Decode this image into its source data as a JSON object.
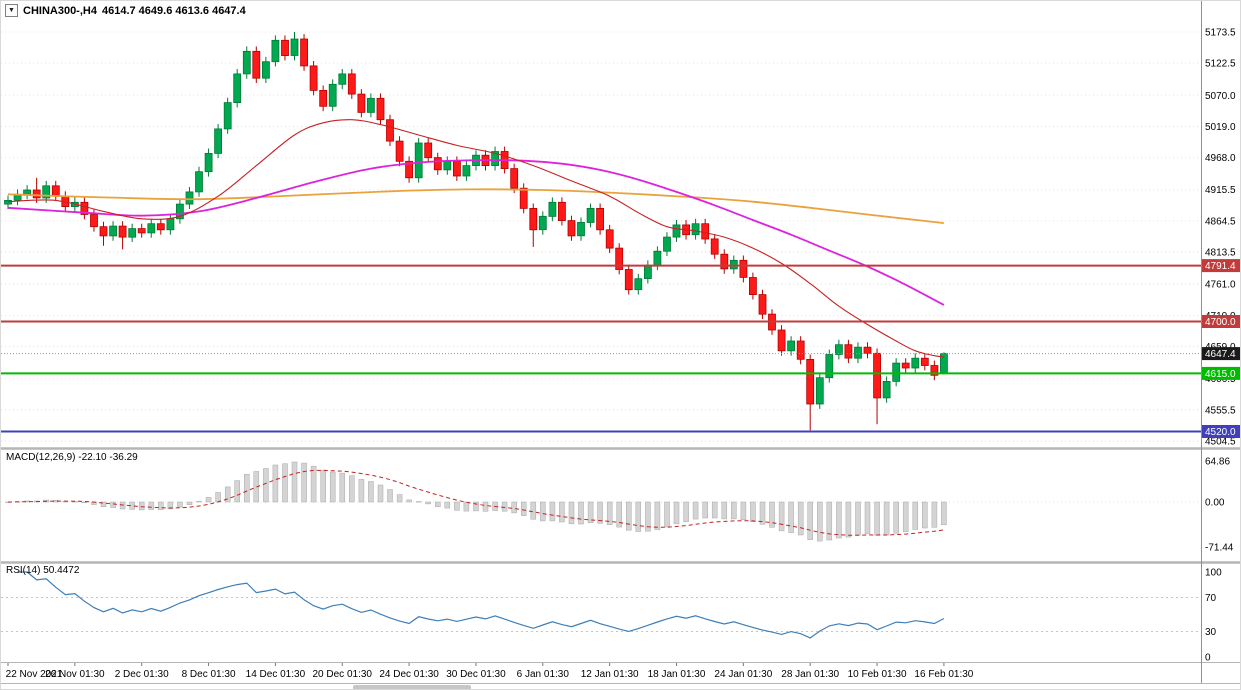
{
  "header": {
    "dropdown_icon": "▼",
    "symbol_label": "CHINA300-,H4",
    "ohlc_label": "4614.7 4649.6 4613.6 4647.4"
  },
  "indicators": {
    "macd": {
      "label": "MACD(12,26,9) -22.10 -36.29",
      "params": [
        12,
        26,
        9
      ],
      "main_value": -22.1,
      "signal_value": -36.29,
      "axis_ticks": [
        "64.86",
        "0.00",
        "-71.44"
      ]
    },
    "rsi": {
      "label": "RSI(14) 50.4472",
      "period": 14,
      "value": 50.4472,
      "axis_ticks": [
        "100",
        "70",
        "30",
        "0"
      ],
      "levels": [
        70,
        30
      ]
    }
  },
  "chart_data": {
    "type": "candlestick",
    "symbol": "CHINA300-",
    "timeframe": "H4",
    "last_ohlc": {
      "open": 4614.7,
      "high": 4649.6,
      "low": 4613.6,
      "close": 4647.4
    },
    "price_axis_ticks": [
      5173.5,
      5122.5,
      5070.0,
      5019.0,
      4968.0,
      4915.5,
      4864.5,
      4813.5,
      4761.0,
      4710.0,
      4659.0,
      4606.5,
      4555.5,
      4504.5
    ],
    "time_ticks": [
      {
        "i": 0,
        "label": "22 Nov 2021"
      },
      {
        "i": 7,
        "label": "26 Nov 01:30"
      },
      {
        "i": 14,
        "label": "2 Dec 01:30"
      },
      {
        "i": 21,
        "label": "8 Dec 01:30"
      },
      {
        "i": 28,
        "label": "14 Dec 01:30"
      },
      {
        "i": 35,
        "label": "20 Dec 01:30"
      },
      {
        "i": 42,
        "label": "24 Dec 01:30"
      },
      {
        "i": 49,
        "label": "30 Dec 01:30"
      },
      {
        "i": 56,
        "label": "6 Jan 01:30"
      },
      {
        "i": 63,
        "label": "12 Jan 01:30"
      },
      {
        "i": 70,
        "label": "18 Jan 01:30"
      },
      {
        "i": 77,
        "label": "24 Jan 01:30"
      },
      {
        "i": 84,
        "label": "28 Jan 01:30"
      },
      {
        "i": 91,
        "label": "10 Feb 01:30"
      },
      {
        "i": 98,
        "label": "16 Feb 01:30"
      }
    ],
    "candles": [
      [
        4892,
        4906,
        4884,
        4898
      ],
      [
        4898,
        4916,
        4890,
        4908
      ],
      [
        4908,
        4923,
        4900,
        4915
      ],
      [
        4915,
        4935,
        4894,
        4902
      ],
      [
        4902,
        4930,
        4894,
        4922
      ],
      [
        4922,
        4930,
        4897,
        4905
      ],
      [
        4905,
        4913,
        4880,
        4888
      ],
      [
        4888,
        4903,
        4880,
        4895
      ],
      [
        4895,
        4903,
        4867,
        4875
      ],
      [
        4875,
        4883,
        4847,
        4855
      ],
      [
        4855,
        4863,
        4824,
        4840
      ],
      [
        4840,
        4864,
        4832,
        4856
      ],
      [
        4856,
        4864,
        4818,
        4838
      ],
      [
        4838,
        4860,
        4830,
        4852
      ],
      [
        4852,
        4860,
        4837,
        4845
      ],
      [
        4845,
        4868,
        4837,
        4860
      ],
      [
        4860,
        4868,
        4842,
        4850
      ],
      [
        4850,
        4876,
        4842,
        4868
      ],
      [
        4868,
        4900,
        4860,
        4892
      ],
      [
        4892,
        4920,
        4884,
        4912
      ],
      [
        4912,
        4953,
        4904,
        4945
      ],
      [
        4945,
        4983,
        4937,
        4975
      ],
      [
        4975,
        5023,
        4967,
        5015
      ],
      [
        5015,
        5066,
        5007,
        5058
      ],
      [
        5058,
        5113,
        5050,
        5105
      ],
      [
        5105,
        5150,
        5097,
        5142
      ],
      [
        5142,
        5150,
        5090,
        5098
      ],
      [
        5098,
        5133,
        5090,
        5125
      ],
      [
        5125,
        5168,
        5117,
        5160
      ],
      [
        5160,
        5168,
        5127,
        5135
      ],
      [
        5135,
        5173.5,
        5127,
        5162
      ],
      [
        5162,
        5170,
        5110,
        5118
      ],
      [
        5118,
        5126,
        5070,
        5078
      ],
      [
        5078,
        5086,
        5044,
        5052
      ],
      [
        5052,
        5096,
        5044,
        5088
      ],
      [
        5088,
        5113,
        5080,
        5105
      ],
      [
        5105,
        5113,
        5064,
        5072
      ],
      [
        5072,
        5080,
        5034,
        5042
      ],
      [
        5042,
        5073,
        5034,
        5065
      ],
      [
        5065,
        5073,
        5022,
        5030
      ],
      [
        5030,
        5038,
        4987,
        4995
      ],
      [
        4995,
        5003,
        4954,
        4962
      ],
      [
        4962,
        4970,
        4927,
        4935
      ],
      [
        4935,
        5000,
        4927,
        4992
      ],
      [
        4992,
        5000,
        4960,
        4968
      ],
      [
        4968,
        4976,
        4940,
        4948
      ],
      [
        4948,
        4970,
        4940,
        4962
      ],
      [
        4962,
        4970,
        4930,
        4938
      ],
      [
        4938,
        4963,
        4930,
        4955
      ],
      [
        4955,
        4980,
        4947,
        4972
      ],
      [
        4972,
        4980,
        4947,
        4955
      ],
      [
        4955,
        4986,
        4947,
        4978
      ],
      [
        4978,
        4986,
        4942,
        4950
      ],
      [
        4950,
        4958,
        4910,
        4918
      ],
      [
        4918,
        4926,
        4877,
        4885
      ],
      [
        4885,
        4893,
        4822,
        4850
      ],
      [
        4850,
        4880,
        4842,
        4872
      ],
      [
        4872,
        4903,
        4864,
        4895
      ],
      [
        4895,
        4903,
        4857,
        4865
      ],
      [
        4865,
        4873,
        4832,
        4840
      ],
      [
        4840,
        4870,
        4832,
        4862
      ],
      [
        4862,
        4893,
        4854,
        4885
      ],
      [
        4885,
        4893,
        4842,
        4850
      ],
      [
        4850,
        4858,
        4812,
        4820
      ],
      [
        4820,
        4828,
        4777,
        4785
      ],
      [
        4785,
        4793,
        4744,
        4752
      ],
      [
        4752,
        4778,
        4744,
        4770
      ],
      [
        4770,
        4800,
        4762,
        4792
      ],
      [
        4792,
        4823,
        4784,
        4815
      ],
      [
        4815,
        4846,
        4807,
        4838
      ],
      [
        4838,
        4866,
        4830,
        4858
      ],
      [
        4858,
        4866,
        4834,
        4842
      ],
      [
        4842,
        4868,
        4834,
        4860
      ],
      [
        4860,
        4868,
        4827,
        4835
      ],
      [
        4835,
        4843,
        4802,
        4810
      ],
      [
        4810,
        4818,
        4778,
        4786
      ],
      [
        4786,
        4808,
        4778,
        4800
      ],
      [
        4800,
        4808,
        4764,
        4772
      ],
      [
        4772,
        4780,
        4736,
        4744
      ],
      [
        4744,
        4752,
        4704,
        4712
      ],
      [
        4712,
        4720,
        4678,
        4686
      ],
      [
        4686,
        4694,
        4644,
        4652
      ],
      [
        4652,
        4676,
        4644,
        4668
      ],
      [
        4668,
        4676,
        4630,
        4638
      ],
      [
        4638,
        4646,
        4522,
        4565
      ],
      [
        4565,
        4616,
        4557,
        4608
      ],
      [
        4608,
        4654,
        4600,
        4646
      ],
      [
        4646,
        4670,
        4638,
        4662
      ],
      [
        4662,
        4670,
        4632,
        4640
      ],
      [
        4640,
        4666,
        4632,
        4658
      ],
      [
        4658,
        4666,
        4640,
        4648
      ],
      [
        4648,
        4656,
        4532,
        4575
      ],
      [
        4575,
        4610,
        4567,
        4602
      ],
      [
        4602,
        4640,
        4594,
        4632
      ],
      [
        4632,
        4640,
        4616,
        4624
      ],
      [
        4624,
        4648,
        4616,
        4640
      ],
      [
        4640,
        4648,
        4620,
        4628
      ],
      [
        4628,
        4636,
        4604,
        4612
      ],
      [
        4614.7,
        4649.6,
        4613.6,
        4647.4
      ]
    ],
    "moving_averages": [
      {
        "name": "ma-slow",
        "color": "#e8a33d",
        "width": 1.8,
        "points": [
          [
            0,
            4908
          ],
          [
            10,
            4903
          ],
          [
            20,
            4900
          ],
          [
            30,
            4906
          ],
          [
            40,
            4913
          ],
          [
            48,
            4916
          ],
          [
            56,
            4915
          ],
          [
            64,
            4910
          ],
          [
            72,
            4903
          ],
          [
            78,
            4896
          ],
          [
            84,
            4886
          ],
          [
            90,
            4875
          ],
          [
            94,
            4868
          ],
          [
            98,
            4861
          ]
        ]
      },
      {
        "name": "ma-mid",
        "color": "#dd22dd",
        "width": 1.8,
        "points": [
          [
            0,
            4886
          ],
          [
            8,
            4878
          ],
          [
            14,
            4873
          ],
          [
            20,
            4880
          ],
          [
            26,
            4902
          ],
          [
            32,
            4928
          ],
          [
            38,
            4950
          ],
          [
            44,
            4961
          ],
          [
            50,
            4964
          ],
          [
            54,
            4963
          ],
          [
            58,
            4958
          ],
          [
            62,
            4948
          ],
          [
            66,
            4932
          ],
          [
            70,
            4912
          ],
          [
            74,
            4890
          ],
          [
            78,
            4866
          ],
          [
            82,
            4842
          ],
          [
            86,
            4816
          ],
          [
            90,
            4790
          ],
          [
            94,
            4760
          ],
          [
            98,
            4727
          ]
        ]
      },
      {
        "name": "ma-fast",
        "color": "#c82020",
        "width": 1.1,
        "points": [
          [
            0,
            4896
          ],
          [
            5,
            4898
          ],
          [
            10,
            4880
          ],
          [
            14,
            4868
          ],
          [
            18,
            4872
          ],
          [
            22,
            4905
          ],
          [
            26,
            4955
          ],
          [
            30,
            5005
          ],
          [
            33,
            5025
          ],
          [
            36,
            5030
          ],
          [
            39,
            5022
          ],
          [
            43,
            5005
          ],
          [
            47,
            4988
          ],
          [
            51,
            4975
          ],
          [
            55,
            4955
          ],
          [
            59,
            4930
          ],
          [
            63,
            4905
          ],
          [
            66,
            4878
          ],
          [
            69,
            4855
          ],
          [
            72,
            4848
          ],
          [
            75,
            4838
          ],
          [
            78,
            4820
          ],
          [
            81,
            4795
          ],
          [
            84,
            4762
          ],
          [
            87,
            4725
          ],
          [
            90,
            4695
          ],
          [
            93,
            4668
          ],
          [
            95,
            4652
          ],
          [
            97,
            4644
          ],
          [
            98,
            4642
          ]
        ]
      }
    ],
    "h_lines": [
      {
        "value": 4791.4,
        "label": "4791.4",
        "color": "#c23b3b"
      },
      {
        "value": 4700.0,
        "label": "4700.0",
        "color": "#c23b3b"
      },
      {
        "value": 4647.4,
        "label": "4647.4",
        "color": "#1a1a1a",
        "style": "current"
      },
      {
        "value": 4615.0,
        "label": "4615.0",
        "color": "#00bb00"
      },
      {
        "value": 4520.0,
        "label": "4520.0",
        "color": "#4040bb"
      }
    ],
    "colors": {
      "bull": "#00a94f",
      "bull_stroke": "#007a38",
      "bear": "#ff1a1a",
      "bear_stroke": "#b30000",
      "macd_hist": "#d4d4d4",
      "macd_hist_stroke": "#a8a8a8",
      "macd_signal": "#c82020",
      "rsi_line": "#3d7fb8",
      "grid": "#e3e3e3",
      "axis": "#8f8f8f"
    }
  }
}
